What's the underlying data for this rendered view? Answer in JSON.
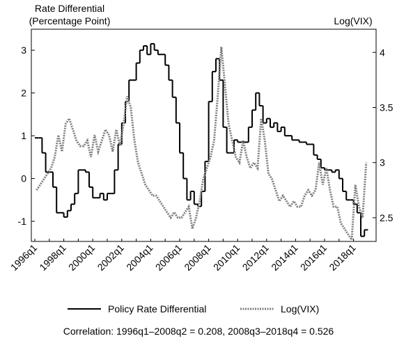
{
  "chart_data": {
    "type": "line",
    "ylabel": [
      "Rate Differential",
      "(Percentage Point)"
    ],
    "y2label": "Log(VIX)",
    "note": "Correlation: 1996q1–2008q2 = 0.208, 2008q3–2018q4 = 0.526",
    "categories": [
      "1996q1",
      null,
      null,
      null,
      null,
      null,
      null,
      null,
      "1998q1",
      null,
      null,
      null,
      null,
      null,
      null,
      null,
      "2000q1",
      null,
      null,
      null,
      null,
      null,
      null,
      null,
      "2002q1",
      null,
      null,
      null,
      null,
      null,
      null,
      null,
      "2004q1",
      null,
      null,
      null,
      null,
      null,
      null,
      null,
      "2006q1",
      null,
      null,
      null,
      null,
      null,
      null,
      null,
      "2008q1",
      null,
      null,
      null,
      null,
      null,
      null,
      null,
      "2010q1",
      null,
      null,
      null,
      null,
      null,
      null,
      null,
      "2012q1",
      null,
      null,
      null,
      null,
      null,
      null,
      null,
      "2014q1",
      null,
      null,
      null,
      null,
      null,
      null,
      null,
      "2016q1",
      null,
      null,
      null,
      null,
      null,
      null,
      null,
      "2018q1",
      null,
      null,
      null
    ],
    "series": [
      {
        "name": "Policy Rate Differential",
        "color": "#000000",
        "style": "step",
        "axis": "y",
        "values": [
          0.95,
          0.95,
          0.6,
          0.15,
          0.15,
          -0.2,
          -0.8,
          -0.8,
          -0.9,
          -0.75,
          -0.6,
          -0.35,
          0.2,
          0.2,
          0.15,
          -0.2,
          -0.45,
          -0.45,
          -0.35,
          -0.5,
          -0.35,
          -0.35,
          0.2,
          0.8,
          1.3,
          1.8,
          2.3,
          2.3,
          2.7,
          3.0,
          3.1,
          2.9,
          3.15,
          3.0,
          2.9,
          2.9,
          2.65,
          2.3,
          1.9,
          1.3,
          0.6,
          0.0,
          -0.5,
          -0.3,
          -0.6,
          -0.65,
          -0.3,
          0.4,
          1.8,
          2.5,
          2.8,
          2.3,
          1.2,
          0.6,
          0.6,
          0.9,
          0.85,
          0.85,
          0.85,
          1.2,
          1.6,
          2.0,
          1.7,
          1.3,
          1.4,
          1.2,
          1.3,
          1.1,
          1.2,
          1.0,
          1.0,
          0.9,
          0.9,
          0.85,
          0.85,
          0.8,
          0.8,
          0.55,
          0.45,
          0.25,
          0.2,
          0.2,
          0.15,
          0.2,
          0.0,
          -0.3,
          -0.5,
          -0.5,
          -0.6,
          -0.8,
          -1.35,
          -1.2
        ]
      },
      {
        "name": "Log(VIX)",
        "color": "#808080",
        "style": "dotted",
        "axis": "y2",
        "values": [
          2.75,
          2.8,
          2.85,
          2.9,
          2.95,
          3.05,
          3.25,
          3.1,
          3.35,
          3.4,
          3.3,
          3.2,
          3.15,
          3.15,
          3.2,
          3.05,
          3.25,
          3.1,
          3.2,
          3.3,
          3.25,
          3.1,
          3.3,
          3.15,
          3.35,
          3.6,
          3.5,
          3.2,
          3.0,
          2.9,
          2.8,
          2.75,
          2.7,
          2.7,
          2.65,
          2.6,
          2.55,
          2.5,
          2.55,
          2.5,
          2.5,
          2.55,
          2.6,
          2.4,
          2.5,
          2.65,
          2.85,
          2.95,
          3.05,
          3.2,
          3.6,
          4.05,
          3.7,
          3.35,
          3.2,
          3.05,
          3.0,
          3.2,
          3.05,
          2.95,
          3.0,
          2.95,
          3.4,
          3.2,
          2.9,
          2.85,
          2.75,
          2.65,
          2.7,
          2.65,
          2.6,
          2.65,
          2.6,
          2.6,
          2.7,
          2.75,
          2.7,
          2.75,
          3.0,
          2.8,
          2.95,
          2.75,
          2.6,
          2.6,
          2.45,
          2.4,
          2.35,
          2.3,
          2.8,
          2.6,
          2.5,
          3.0
        ]
      }
    ],
    "ylim": [
      -1.47,
      3.49
    ],
    "yticks": [
      -1,
      0,
      1,
      2,
      3
    ],
    "y2lim": [
      2.285,
      4.21
    ],
    "y2ticks": [
      2.5,
      3,
      3.5,
      4
    ]
  }
}
